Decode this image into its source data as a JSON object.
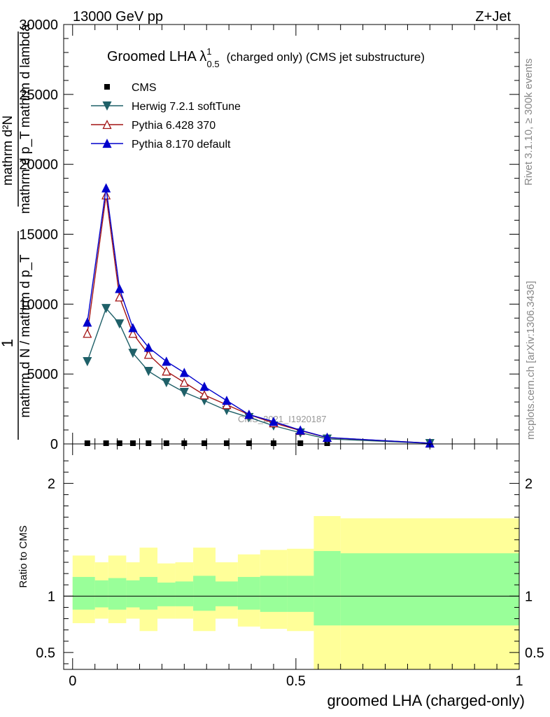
{
  "header": {
    "energy": "13000 GeV pp",
    "process": "Z+Jet"
  },
  "side_labels": {
    "rivet": "Rivet 3.1.10, ≥ 300k events",
    "mcplots": "mcplots.cern.ch [arXiv:1306.3436]"
  },
  "chart_data": [
    {
      "type": "line",
      "title": "Groomed LHA λ",
      "title_sup": "1",
      "title_sub": "0.5",
      "title_rest": "(charged only) (CMS jet substructure)",
      "watermark": "CMS_2021_I1920187",
      "ylabel_main": "1",
      "ylabel_denominator": "mathrm d N / mathrm d p_T",
      "ylabel_numerator": "mathrm d²N",
      "ylabel_numerator_denominator": "mathrm d p_T mathrm d lambda",
      "ylim": [
        0,
        30000
      ],
      "yticks": [
        0,
        5000,
        10000,
        15000,
        20000,
        25000,
        30000
      ],
      "ytick_labels": [
        "0",
        "5000",
        "10000",
        "15000",
        "20000",
        "25000",
        "30000"
      ],
      "xlim": [
        -0.02,
        1.0
      ],
      "x": [
        0.033,
        0.075,
        0.105,
        0.135,
        0.17,
        0.21,
        0.25,
        0.295,
        0.345,
        0.395,
        0.45,
        0.51,
        0.57,
        0.8
      ],
      "series": [
        {
          "name": "CMS",
          "color": "#000000",
          "marker": "square",
          "values": [
            0,
            1,
            1,
            1,
            1,
            1,
            1,
            1,
            1,
            1,
            1,
            1,
            1,
            1
          ]
        },
        {
          "name": "Herwig 7.2.1 softTune",
          "color": "#1f6068",
          "marker": "triangle-down",
          "values": [
            5900,
            9700,
            8600,
            6500,
            5200,
            4400,
            3700,
            3100,
            2400,
            1900,
            1300,
            800,
            360,
            40
          ]
        },
        {
          "name": "Pythia 6.428 370",
          "color": "#a31414",
          "marker": "triangle-up-open",
          "values": [
            7900,
            17800,
            10500,
            7900,
            6400,
            5200,
            4400,
            3500,
            2800,
            2100,
            1500,
            950,
            450,
            50
          ]
        },
        {
          "name": "Pythia 8.170 default",
          "color": "#0000cc",
          "marker": "triangle-up",
          "values": [
            8700,
            18300,
            11100,
            8300,
            6900,
            5900,
            5100,
            4100,
            3100,
            2100,
            1600,
            980,
            460,
            50
          ]
        }
      ]
    },
    {
      "type": "area",
      "ylabel": "Ratio to CMS",
      "xlabel": "groomed LHA (charged-only)",
      "ylim": [
        0.35,
        2.35
      ],
      "yticks": [
        0.5,
        1,
        2
      ],
      "ytick_labels": [
        "0.5",
        "1",
        "2"
      ],
      "xlim": [
        -0.02,
        1.0
      ],
      "xticks": [
        0,
        0.5,
        1
      ],
      "xtick_labels": [
        "0",
        "0.5",
        "1"
      ],
      "bins": [
        {
          "lo": 0.0,
          "hi": 0.05,
          "stat_lo": 0.88,
          "stat_hi": 1.17,
          "tot_lo": 0.76,
          "tot_hi": 1.36
        },
        {
          "lo": 0.05,
          "hi": 0.08,
          "stat_lo": 0.9,
          "stat_hi": 1.14,
          "tot_lo": 0.8,
          "tot_hi": 1.3
        },
        {
          "lo": 0.08,
          "hi": 0.12,
          "stat_lo": 0.88,
          "stat_hi": 1.16,
          "tot_lo": 0.76,
          "tot_hi": 1.36
        },
        {
          "lo": 0.12,
          "hi": 0.15,
          "stat_lo": 0.9,
          "stat_hi": 1.14,
          "tot_lo": 0.8,
          "tot_hi": 1.3
        },
        {
          "lo": 0.15,
          "hi": 0.19,
          "stat_lo": 0.88,
          "stat_hi": 1.17,
          "tot_lo": 0.69,
          "tot_hi": 1.43
        },
        {
          "lo": 0.19,
          "hi": 0.23,
          "stat_lo": 0.91,
          "stat_hi": 1.12,
          "tot_lo": 0.8,
          "tot_hi": 1.29
        },
        {
          "lo": 0.23,
          "hi": 0.27,
          "stat_lo": 0.91,
          "stat_hi": 1.13,
          "tot_lo": 0.8,
          "tot_hi": 1.3
        },
        {
          "lo": 0.27,
          "hi": 0.32,
          "stat_lo": 0.87,
          "stat_hi": 1.18,
          "tot_lo": 0.69,
          "tot_hi": 1.43
        },
        {
          "lo": 0.32,
          "hi": 0.37,
          "stat_lo": 0.91,
          "stat_hi": 1.13,
          "tot_lo": 0.8,
          "tot_hi": 1.3
        },
        {
          "lo": 0.37,
          "hi": 0.42,
          "stat_lo": 0.88,
          "stat_hi": 1.17,
          "tot_lo": 0.73,
          "tot_hi": 1.37
        },
        {
          "lo": 0.42,
          "hi": 0.48,
          "stat_lo": 0.86,
          "stat_hi": 1.18,
          "tot_lo": 0.71,
          "tot_hi": 1.41
        },
        {
          "lo": 0.48,
          "hi": 0.54,
          "stat_lo": 0.86,
          "stat_hi": 1.18,
          "tot_lo": 0.69,
          "tot_hi": 1.42
        },
        {
          "lo": 0.54,
          "hi": 0.6,
          "stat_lo": 0.74,
          "stat_hi": 1.4,
          "tot_lo": 0.35,
          "tot_hi": 1.71
        },
        {
          "lo": 0.6,
          "hi": 1.0,
          "stat_lo": 0.74,
          "stat_hi": 1.38,
          "tot_lo": 0.35,
          "tot_hi": 1.69
        }
      ],
      "colors": {
        "total": "#ffff99",
        "stat": "#99ff99"
      }
    }
  ]
}
